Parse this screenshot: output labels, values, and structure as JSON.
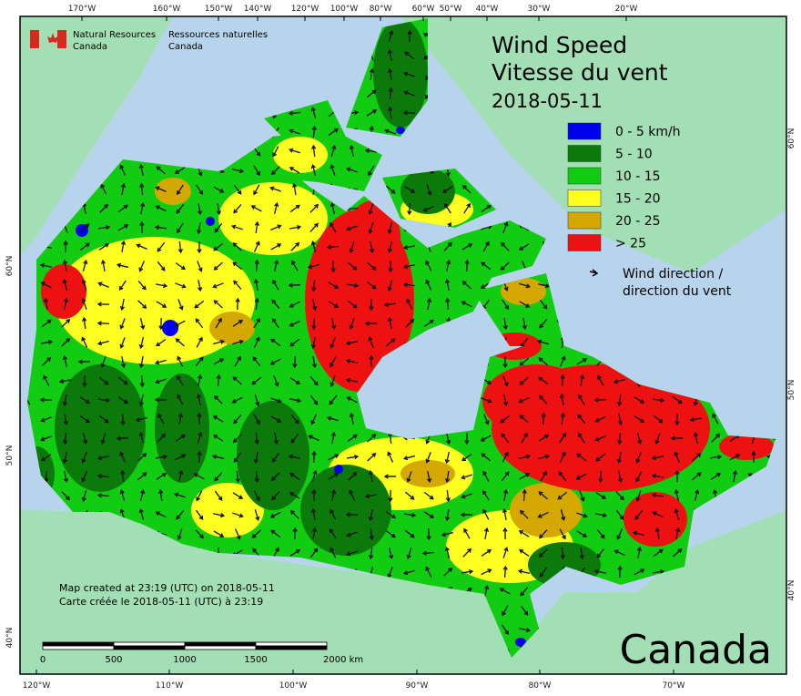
{
  "header": {
    "agency_en": [
      "Natural Resources",
      "Canada"
    ],
    "agency_fr": [
      "Ressources naturelles",
      "Canada"
    ],
    "title": [
      "Wind Speed",
      "Vitesse du vent"
    ],
    "date": "2018-05-11"
  },
  "legend": {
    "items": [
      {
        "label": "0 - 5 km/h",
        "color": "#0000ee"
      },
      {
        "label": "5 - 10",
        "color": "#0b7a0b"
      },
      {
        "label": "10 - 15",
        "color": "#11cc11"
      },
      {
        "label": "15 - 20",
        "color": "#ffff22"
      },
      {
        "label": "20 - 25",
        "color": "#d4a800"
      },
      {
        "label": "> 25",
        "color": "#ee1111"
      }
    ],
    "arrow": [
      "Wind direction /",
      "direction du vent"
    ]
  },
  "footer": {
    "created": [
      "Map created at 23:19 (UTC) on 2018-05-11",
      "Carte créée le 2018-05-11 (UTC) à 23:19"
    ],
    "scale": [
      "0",
      "500",
      "1000",
      "1500",
      "2000  km"
    ],
    "wordmark": "Canada"
  },
  "graticule": {
    "top": [
      "170°W",
      "160°W",
      "150°W",
      "140°W",
      "120°W",
      "100°W",
      "80°W",
      "60°W",
      "50°W",
      "40°W",
      "30°W",
      "20°W"
    ],
    "bottom": [
      "120°W",
      "110°W",
      "100°W",
      "90°W",
      "80°W",
      "70°W"
    ],
    "left": [
      "60°N",
      "50°N",
      "40°N"
    ],
    "right": [
      "60°N",
      "50°N",
      "40°N"
    ]
  }
}
